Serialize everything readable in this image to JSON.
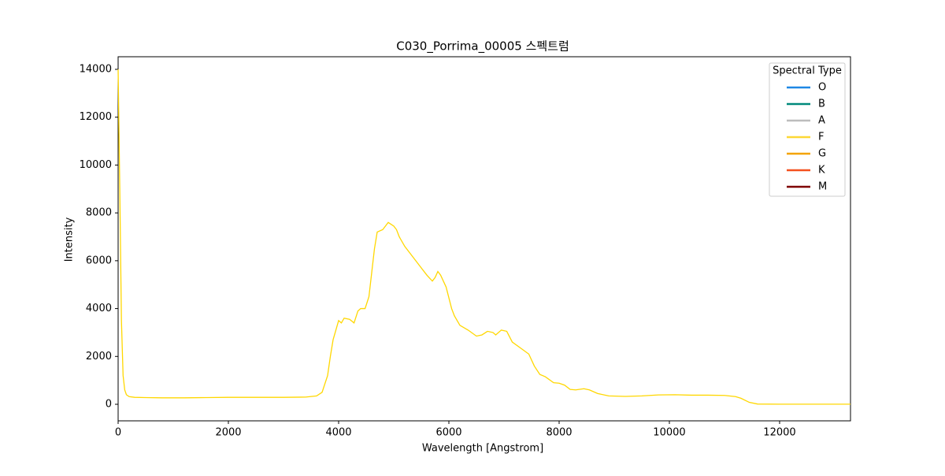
{
  "chart_data": {
    "type": "line",
    "title": "C030_Porrima_00005 스펙트럼",
    "x_label": "Wavelength [Angstrom]",
    "y_label": "Intensity",
    "x": [
      0,
      30,
      60,
      90,
      120,
      150,
      200,
      300,
      500,
      800,
      1200,
      1600,
      2000,
      2500,
      3000,
      3400,
      3600,
      3700,
      3800,
      3850,
      3900,
      3950,
      4000,
      4050,
      4100,
      4200,
      4280,
      4350,
      4400,
      4480,
      4550,
      4600,
      4650,
      4700,
      4800,
      4900,
      5000,
      5050,
      5100,
      5200,
      5300,
      5400,
      5500,
      5600,
      5700,
      5750,
      5800,
      5850,
      5950,
      6050,
      6100,
      6200,
      6350,
      6500,
      6600,
      6700,
      6800,
      6850,
      6950,
      7050,
      7150,
      7300,
      7450,
      7550,
      7650,
      7750,
      7900,
      8000,
      8100,
      8200,
      8300,
      8450,
      8550,
      8700,
      8900,
      9200,
      9500,
      9800,
      10100,
      10400,
      10700,
      11000,
      11200,
      11300,
      11450,
      11600,
      12000,
      13286
    ],
    "values": [
      14000,
      9000,
      3500,
      1200,
      600,
      400,
      320,
      290,
      280,
      270,
      270,
      280,
      290,
      290,
      290,
      300,
      350,
      500,
      1200,
      2000,
      2700,
      3100,
      3500,
      3400,
      3600,
      3550,
      3400,
      3900,
      4000,
      4000,
      4500,
      5500,
      6500,
      7200,
      7300,
      7600,
      7450,
      7300,
      7000,
      6600,
      6300,
      6000,
      5700,
      5400,
      5150,
      5300,
      5550,
      5400,
      4900,
      4000,
      3700,
      3300,
      3100,
      2850,
      2900,
      3050,
      3000,
      2900,
      3100,
      3050,
      2600,
      2350,
      2100,
      1600,
      1250,
      1150,
      900,
      880,
      800,
      620,
      600,
      650,
      600,
      450,
      350,
      330,
      350,
      390,
      400,
      380,
      380,
      370,
      320,
      250,
      80,
      10,
      5,
      5
    ],
    "color": "#ffd700",
    "xlim": [
      0,
      13286
    ],
    "ylim": [
      -692,
      14527
    ],
    "xticks": [
      0,
      2000,
      4000,
      6000,
      8000,
      10000,
      12000
    ],
    "yticks": [
      0,
      2000,
      4000,
      6000,
      8000,
      10000,
      12000,
      14000
    ],
    "legend": {
      "title": "Spectral Type",
      "position": "upper right",
      "entries": [
        {
          "name": "O",
          "color": "#1e88e5"
        },
        {
          "name": "B",
          "color": "#00897b"
        },
        {
          "name": "A",
          "color": "#bdbdbd"
        },
        {
          "name": "F",
          "color": "#fdd835"
        },
        {
          "name": "G",
          "color": "#f4a300"
        },
        {
          "name": "K",
          "color": "#f4511e"
        },
        {
          "name": "M",
          "color": "#7f0000"
        }
      ]
    }
  }
}
